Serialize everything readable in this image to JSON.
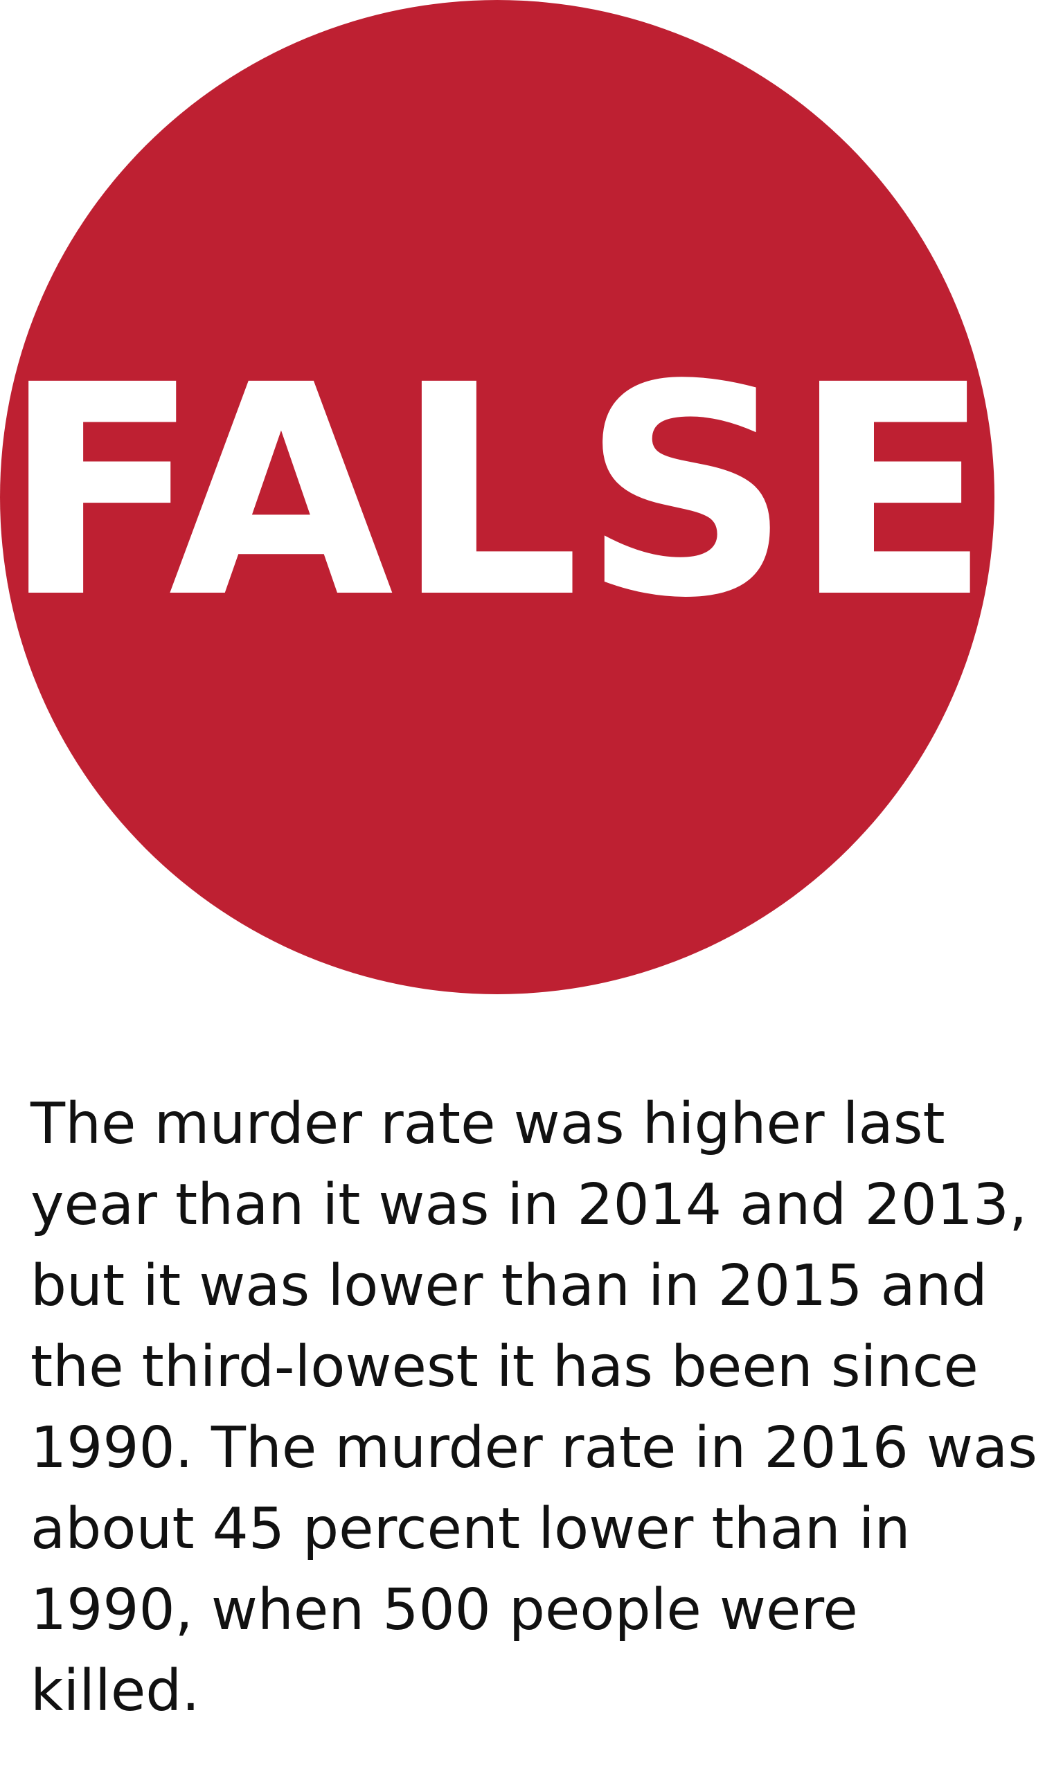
{
  "verdict": {
    "label": "FALSE",
    "circle_color": "#be2032",
    "text_color": "#ffffff"
  },
  "explanation": {
    "text": "The murder rate was higher last year than it was in 2014 and 2013, but it was lower than in 2015 and the third-lowest it has been since 1990. The murder rate in 2016 was about 45 percent lower than in 1990, when 500 people were killed."
  }
}
